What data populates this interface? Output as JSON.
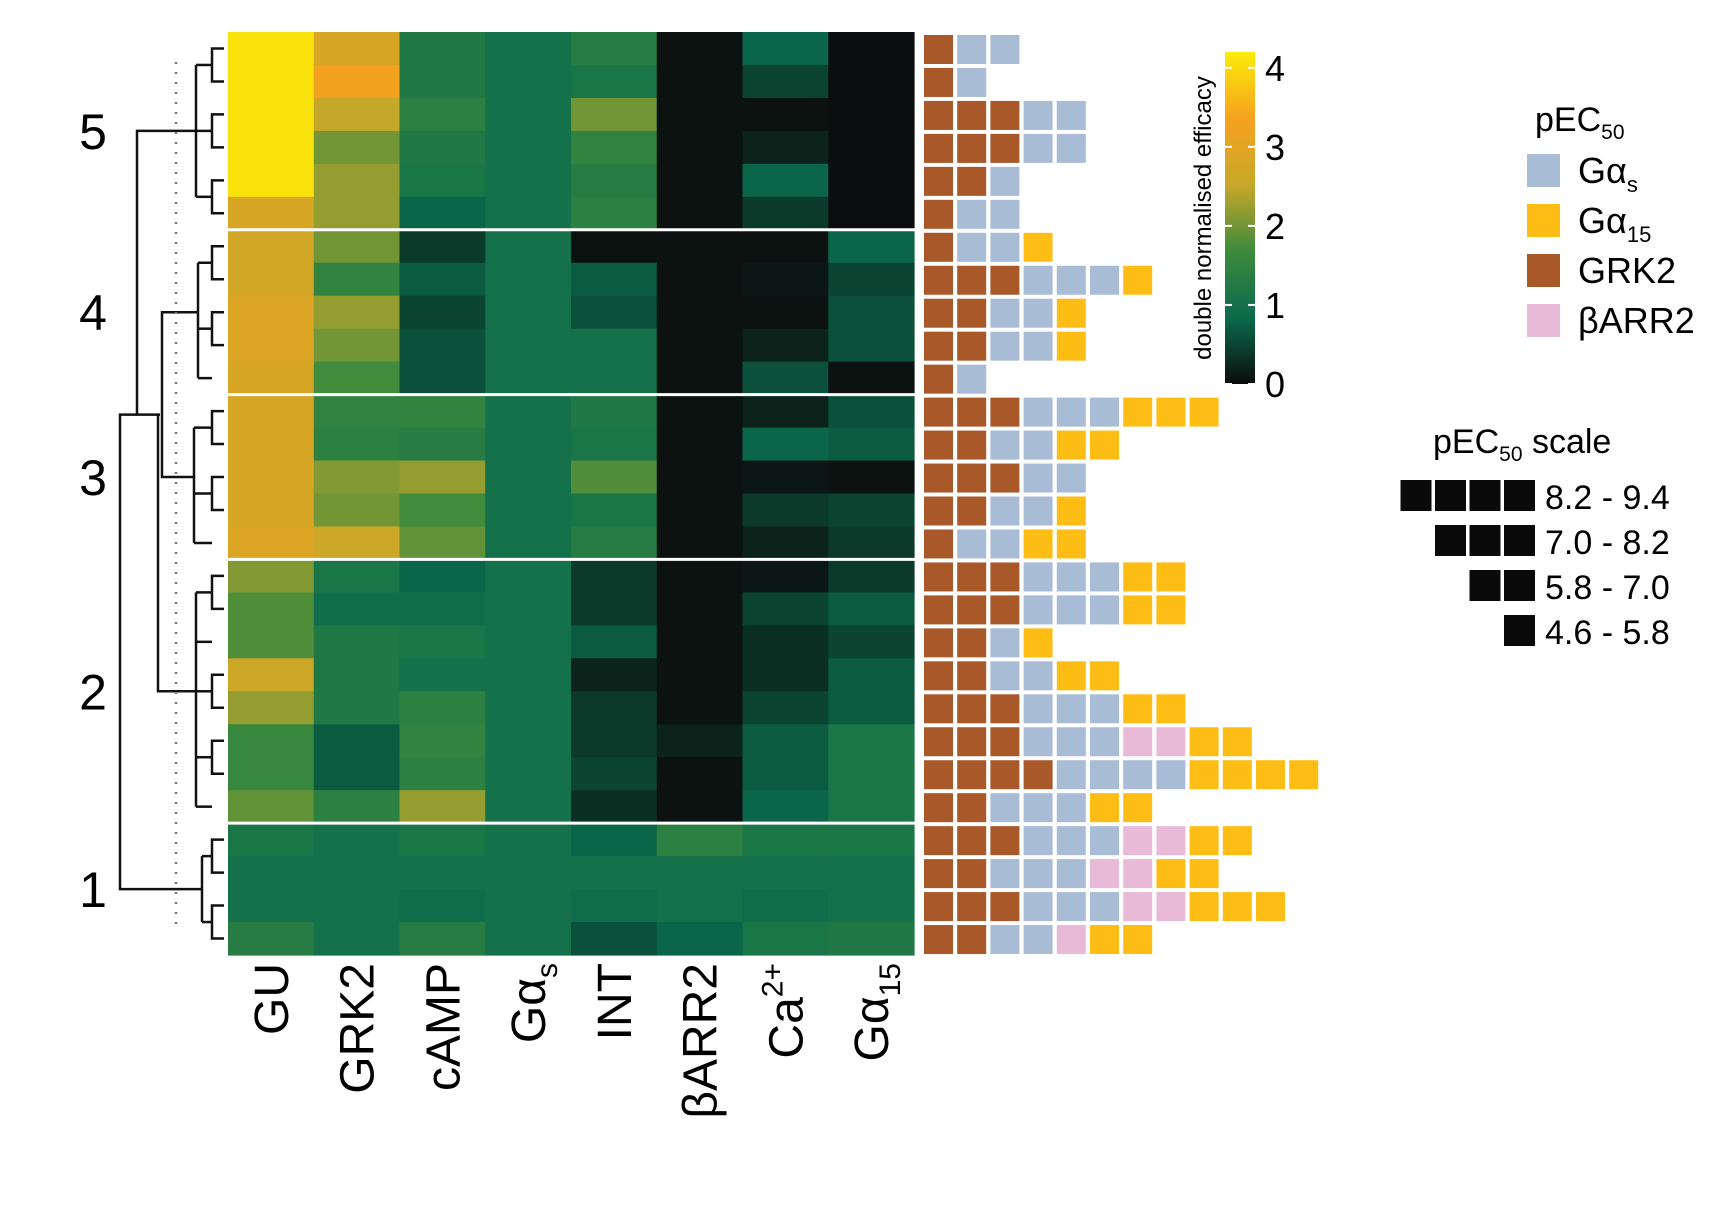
{
  "chart_data": {
    "type": "heatmap",
    "columns": [
      {
        "base": "GU",
        "sub": "",
        "sup": ""
      },
      {
        "base": "GRK2",
        "sub": "",
        "sup": ""
      },
      {
        "base": "cAMP",
        "sub": "",
        "sup": ""
      },
      {
        "base": "Gα",
        "sub": "s",
        "sup": ""
      },
      {
        "base": "INT",
        "sub": "",
        "sup": ""
      },
      {
        "base": "βARR2",
        "sub": "",
        "sup": ""
      },
      {
        "base": "Ca",
        "sub": "",
        "sup": "2+"
      },
      {
        "base": "Gα",
        "sub": "15",
        "sup": ""
      }
    ],
    "cluster_labels": [
      "5",
      "4",
      "3",
      "2",
      "1"
    ],
    "clusters": [
      {
        "label": "5",
        "rows": 6
      },
      {
        "label": "4",
        "rows": 5
      },
      {
        "label": "3",
        "rows": 5
      },
      {
        "label": "2",
        "rows": 8
      },
      {
        "label": "1",
        "rows": 4
      }
    ],
    "values": [
      [
        4.1,
        2.8,
        1.2,
        1.0,
        1.3,
        0.05,
        0.8,
        0.02
      ],
      [
        4.1,
        3.3,
        1.2,
        1.0,
        1.1,
        0.05,
        0.5,
        0.02
      ],
      [
        4.1,
        2.5,
        1.4,
        1.0,
        2.0,
        0.05,
        0.05,
        0.02
      ],
      [
        4.1,
        2.0,
        1.2,
        1.0,
        1.5,
        0.05,
        0.2,
        0.02
      ],
      [
        4.1,
        2.2,
        1.1,
        1.0,
        1.3,
        0.05,
        0.8,
        0.02
      ],
      [
        2.8,
        2.2,
        0.8,
        1.0,
        1.4,
        0.05,
        0.4,
        0.02
      ],
      [
        2.7,
        2.0,
        0.4,
        1.0,
        0.05,
        0.05,
        0.05,
        0.8
      ],
      [
        2.7,
        1.5,
        0.7,
        1.0,
        0.7,
        0.05,
        0.1,
        0.5
      ],
      [
        2.9,
        2.2,
        0.5,
        1.0,
        0.6,
        0.05,
        0.05,
        0.6
      ],
      [
        2.9,
        2.0,
        0.6,
        1.0,
        1.0,
        0.05,
        0.2,
        0.6
      ],
      [
        2.8,
        1.7,
        0.6,
        1.0,
        1.0,
        0.05,
        0.6,
        0.05
      ],
      [
        2.8,
        1.5,
        1.5,
        1.0,
        1.2,
        0.05,
        0.2,
        0.6
      ],
      [
        2.8,
        1.4,
        1.3,
        1.0,
        1.1,
        0.05,
        0.8,
        0.7
      ],
      [
        2.8,
        2.1,
        2.2,
        1.0,
        1.8,
        0.05,
        0.1,
        0.05
      ],
      [
        2.8,
        2.0,
        1.7,
        1.0,
        1.1,
        0.05,
        0.4,
        0.5
      ],
      [
        2.9,
        2.6,
        1.9,
        1.0,
        1.3,
        0.05,
        0.2,
        0.4
      ],
      [
        2.1,
        1.1,
        0.8,
        1.0,
        0.4,
        0.05,
        0.1,
        0.4
      ],
      [
        1.8,
        0.9,
        0.9,
        1.0,
        0.4,
        0.05,
        0.5,
        0.7
      ],
      [
        1.8,
        1.2,
        1.1,
        1.0,
        0.7,
        0.05,
        0.3,
        0.5
      ],
      [
        2.6,
        1.2,
        1.0,
        1.0,
        0.2,
        0.05,
        0.3,
        0.7
      ],
      [
        2.2,
        1.2,
        1.4,
        1.0,
        0.4,
        0.05,
        0.5,
        0.7
      ],
      [
        1.6,
        0.7,
        1.5,
        1.0,
        0.4,
        0.2,
        0.7,
        1.1
      ],
      [
        1.6,
        0.7,
        1.4,
        1.0,
        0.5,
        0.05,
        0.7,
        1.1
      ],
      [
        1.9,
        1.4,
        2.2,
        1.0,
        0.3,
        0.05,
        0.8,
        1.1
      ],
      [
        1.1,
        1.0,
        1.1,
        1.0,
        0.8,
        1.4,
        1.1,
        1.1
      ],
      [
        1.0,
        1.0,
        1.0,
        1.0,
        1.0,
        1.0,
        1.0,
        1.0
      ],
      [
        1.0,
        1.0,
        0.9,
        1.0,
        0.9,
        1.0,
        0.9,
        1.0
      ],
      [
        1.3,
        1.0,
        1.3,
        1.0,
        0.6,
        0.8,
        1.1,
        1.2
      ]
    ],
    "pec50_blocks": [
      [
        [
          "GRK2",
          1
        ],
        [
          "Gαs",
          2
        ]
      ],
      [
        [
          "GRK2",
          1
        ],
        [
          "Gαs",
          1
        ]
      ],
      [
        [
          "GRK2",
          3
        ],
        [
          "Gαs",
          2
        ]
      ],
      [
        [
          "GRK2",
          3
        ],
        [
          "Gαs",
          2
        ]
      ],
      [
        [
          "GRK2",
          2
        ],
        [
          "Gαs",
          1
        ]
      ],
      [
        [
          "GRK2",
          1
        ],
        [
          "Gαs",
          2
        ]
      ],
      [
        [
          "GRK2",
          1
        ],
        [
          "Gαs",
          2
        ],
        [
          "Gα15",
          1
        ]
      ],
      [
        [
          "GRK2",
          3
        ],
        [
          "Gαs",
          3
        ],
        [
          "Gα15",
          1
        ]
      ],
      [
        [
          "GRK2",
          2
        ],
        [
          "Gαs",
          2
        ],
        [
          "Gα15",
          1
        ]
      ],
      [
        [
          "GRK2",
          2
        ],
        [
          "Gαs",
          2
        ],
        [
          "Gα15",
          1
        ]
      ],
      [
        [
          "GRK2",
          1
        ],
        [
          "Gαs",
          1
        ]
      ],
      [
        [
          "GRK2",
          3
        ],
        [
          "Gαs",
          3
        ],
        [
          "Gα15",
          3
        ]
      ],
      [
        [
          "GRK2",
          2
        ],
        [
          "Gαs",
          2
        ],
        [
          "Gα15",
          2
        ]
      ],
      [
        [
          "GRK2",
          3
        ],
        [
          "Gαs",
          2
        ]
      ],
      [
        [
          "GRK2",
          2
        ],
        [
          "Gαs",
          2
        ],
        [
          "Gα15",
          1
        ]
      ],
      [
        [
          "GRK2",
          1
        ],
        [
          "Gαs",
          2
        ],
        [
          "Gα15",
          2
        ]
      ],
      [
        [
          "GRK2",
          3
        ],
        [
          "Gαs",
          3
        ],
        [
          "Gα15",
          2
        ]
      ],
      [
        [
          "GRK2",
          3
        ],
        [
          "Gαs",
          3
        ],
        [
          "Gα15",
          2
        ]
      ],
      [
        [
          "GRK2",
          2
        ],
        [
          "Gαs",
          1
        ],
        [
          "Gα15",
          1
        ]
      ],
      [
        [
          "GRK2",
          2
        ],
        [
          "Gαs",
          2
        ],
        [
          "Gα15",
          2
        ]
      ],
      [
        [
          "GRK2",
          3
        ],
        [
          "Gαs",
          3
        ],
        [
          "Gα15",
          2
        ]
      ],
      [
        [
          "GRK2",
          3
        ],
        [
          "Gαs",
          3
        ],
        [
          "βARR2",
          2
        ],
        [
          "Gα15",
          2
        ]
      ],
      [
        [
          "GRK2",
          4
        ],
        [
          "Gαs",
          4
        ],
        [
          "Gα15",
          4
        ]
      ],
      [
        [
          "GRK2",
          2
        ],
        [
          "Gαs",
          3
        ],
        [
          "Gα15",
          2
        ]
      ],
      [
        [
          "GRK2",
          3
        ],
        [
          "Gαs",
          3
        ],
        [
          "βARR2",
          2
        ],
        [
          "Gα15",
          2
        ]
      ],
      [
        [
          "GRK2",
          2
        ],
        [
          "Gαs",
          3
        ],
        [
          "βARR2",
          2
        ],
        [
          "Gα15",
          2
        ]
      ],
      [
        [
          "GRK2",
          3
        ],
        [
          "Gαs",
          3
        ],
        [
          "βARR2",
          2
        ],
        [
          "Gα15",
          3
        ]
      ],
      [
        [
          "GRK2",
          2
        ],
        [
          "Gαs",
          2
        ],
        [
          "βARR2",
          1
        ],
        [
          "Gα15",
          2
        ]
      ]
    ],
    "colorbar": {
      "label": "double normalised efficacy",
      "ticks": [
        "0",
        "1",
        "2",
        "3",
        "4"
      ],
      "range": [
        0,
        4.2
      ],
      "stops": [
        "#0b0c0c",
        "#0b6b4c",
        "#3d8a3c",
        "#c8a829",
        "#f6a21e",
        "#fbec0a"
      ]
    },
    "legend": {
      "title_base": "pEC",
      "title_sub": "50",
      "items": [
        {
          "key": "Gαs",
          "base": "Gα",
          "sub": "s",
          "color": "#a9bcd6"
        },
        {
          "key": "Gα15",
          "base": "Gα",
          "sub": "15",
          "color": "#fdbd14"
        },
        {
          "key": "GRK2",
          "base": "GRK2",
          "sub": "",
          "color": "#a9582a"
        },
        {
          "key": "βARR2",
          "base": "βARR2",
          "sub": "",
          "color": "#e9b9d8"
        }
      ]
    },
    "scale": {
      "title_base": "pEC",
      "title_sub": "50",
      "title_rest": " scale",
      "items": [
        {
          "blocks": 4,
          "label": "8.2 - 9.4"
        },
        {
          "blocks": 3,
          "label": "7.0 - 8.2"
        },
        {
          "blocks": 2,
          "label": "5.8 - 7.0"
        },
        {
          "blocks": 1,
          "label": "4.6 - 5.8"
        }
      ]
    }
  }
}
